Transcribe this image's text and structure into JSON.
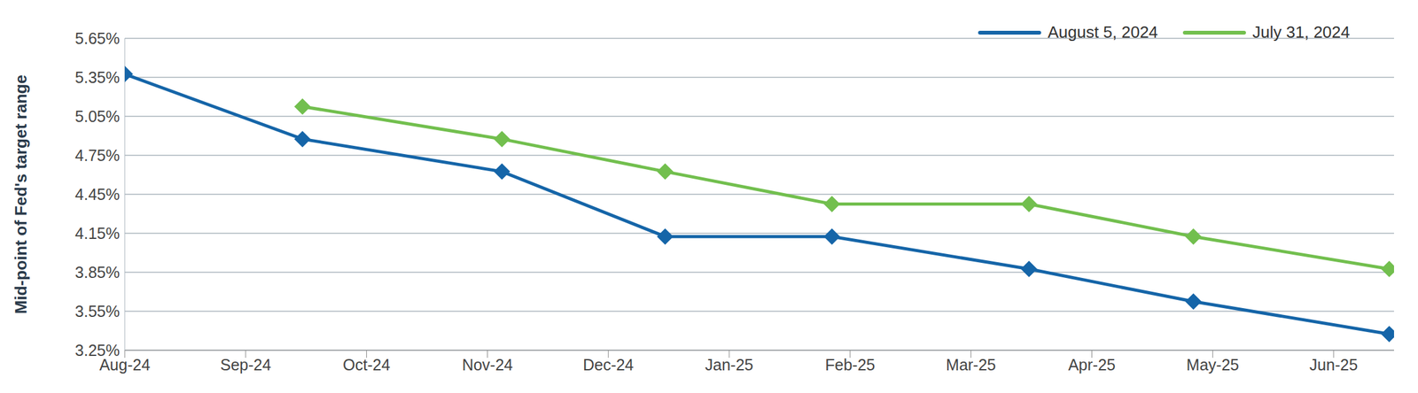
{
  "chart_data": {
    "type": "line",
    "y_label": "Mid-point of Fed's target range",
    "x": [
      0,
      1.47,
      3.12,
      4.47,
      5.85,
      7.48,
      8.84,
      10.46
    ],
    "xlim": [
      0,
      10.5
    ],
    "xticks": [
      {
        "value": 0,
        "label": "Aug-24"
      },
      {
        "value": 1,
        "label": "Sep-24"
      },
      {
        "value": 2,
        "label": "Oct-24"
      },
      {
        "value": 3,
        "label": "Nov-24"
      },
      {
        "value": 4,
        "label": "Dec-24"
      },
      {
        "value": 5,
        "label": "Jan-25"
      },
      {
        "value": 6,
        "label": "Feb-25"
      },
      {
        "value": 7,
        "label": "Mar-25"
      },
      {
        "value": 8,
        "label": "Apr-25"
      },
      {
        "value": 9,
        "label": "May-25"
      },
      {
        "value": 10,
        "label": "Jun-25"
      }
    ],
    "ylim": [
      3.25,
      5.65
    ],
    "yticks": [
      {
        "value": 3.25,
        "label": "3.25%"
      },
      {
        "value": 3.55,
        "label": "3.55%"
      },
      {
        "value": 3.85,
        "label": "3.85%"
      },
      {
        "value": 4.15,
        "label": "4.15%"
      },
      {
        "value": 4.45,
        "label": "4.45%"
      },
      {
        "value": 4.75,
        "label": "4.75%"
      },
      {
        "value": 5.05,
        "label": "5.05%"
      },
      {
        "value": 5.35,
        "label": "5.35%"
      },
      {
        "value": 5.65,
        "label": "5.65%"
      }
    ],
    "grid": true,
    "legend": "top-right",
    "marker": "diamond",
    "series": [
      {
        "name": "August 5, 2024",
        "color": "#1565a8",
        "values": [
          5.375,
          4.875,
          4.625,
          4.125,
          4.125,
          3.875,
          3.625,
          3.375
        ]
      },
      {
        "name": "July 31, 2024",
        "color": "#72bf4e",
        "values": [
          null,
          5.125,
          4.875,
          4.625,
          4.375,
          4.375,
          4.125,
          3.875
        ]
      }
    ]
  }
}
